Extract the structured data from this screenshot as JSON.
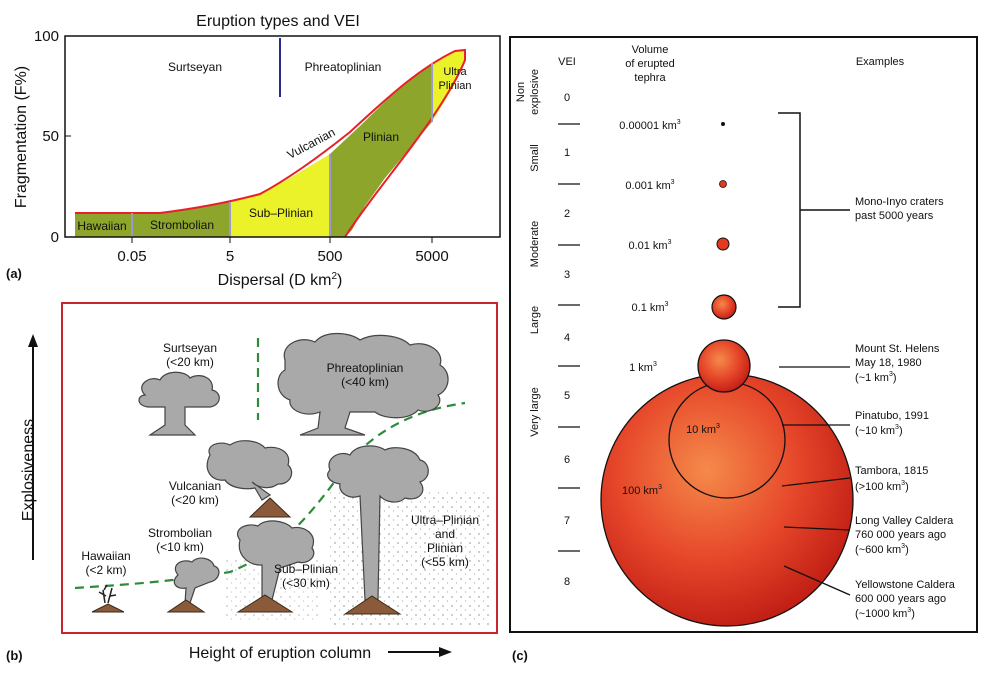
{
  "panel_a": {
    "title": "Eruption types and VEI",
    "panel_label": "(a)",
    "ylabel": "Fragmentation (F%)",
    "xlabel_main": "Dispersal (D km",
    "xlabel_sup": "2",
    "xlabel_end": ")",
    "yticks": [
      "0",
      "50",
      "100"
    ],
    "xticks": [
      "0.05",
      "5",
      "500",
      "5000"
    ],
    "regions": {
      "surtseyan": "Surtseyan",
      "phreatoplinian": "Phreatoplinian",
      "hawaiian": "Hawaiian",
      "strombolian": "Strombolian",
      "sub_plinian": "Sub–Plinian",
      "vulcanian": "Vulcanian",
      "plinian": "Plinian",
      "ultra_1": "Ultra",
      "ultra_2": "Plinian"
    },
    "colors": {
      "boundary": "#e8202a",
      "olive": "#8ca52a",
      "yellow": "#ecf22a",
      "divider": "#9a9ad0"
    }
  },
  "panel_b": {
    "panel_label": "(b)",
    "y_axis_label": "Explosiveness",
    "x_axis_label": "Height of eruption column",
    "frame_color": "#c8262e",
    "labels": {
      "surtseyan": [
        "Surtseyan",
        "(<20 km)"
      ],
      "phreatoplinian": [
        "Phreatoplinian",
        "(<40 km)"
      ],
      "vulcanian": [
        "Vulcanian",
        "(<20 km)"
      ],
      "strombolian": [
        "Strombolian",
        "(<10 km)"
      ],
      "hawaiian": [
        "Hawaiian",
        "(<2 km)"
      ],
      "sub_plinian": [
        "Sub–Plinian",
        "(<30 km)"
      ],
      "ultra_plinian": [
        "Ultra–Plinian",
        "and",
        "Plinian",
        "(<55 km)"
      ]
    }
  },
  "panel_c": {
    "panel_label": "(c)",
    "col_vei": "VEI",
    "col_volume": [
      "Volume",
      "of erupted",
      "tephra"
    ],
    "col_examples": "Examples",
    "vei_numbers": [
      "0",
      "1",
      "2",
      "3",
      "4",
      "5",
      "6",
      "7",
      "8"
    ],
    "categories": {
      "non_explosive": [
        "Non",
        "explosive"
      ],
      "small": "Small",
      "moderate": "Moderate",
      "large": "Large",
      "very_large": "Very large"
    },
    "volumes": [
      {
        "base": "0.00001 km",
        "sup": "3"
      },
      {
        "base": "0.001 km",
        "sup": "3"
      },
      {
        "base": "0.01 km",
        "sup": "3"
      },
      {
        "base": "0.1 km",
        "sup": "3"
      },
      {
        "base": "1 km",
        "sup": "3"
      },
      {
        "base": "10 km",
        "sup": "3"
      },
      {
        "base": "100 km",
        "sup": "3"
      }
    ],
    "examples": {
      "mono_inyo": [
        "Mono-Inyo craters",
        "past 5000 years"
      ],
      "st_helens": {
        "lines": [
          "Mount St. Helens",
          "May 18, 1980"
        ],
        "vol_pre": "(~1 km",
        "sup": "3",
        "vol_post": ")"
      },
      "pinatubo": {
        "lines": [
          "Pinatubo, 1991"
        ],
        "vol_pre": "(~10 km",
        "sup": "3",
        "vol_post": ")"
      },
      "tambora": {
        "lines": [
          "Tambora, 1815"
        ],
        "vol_pre": "(>100 km",
        "sup": "3",
        "vol_post": ")"
      },
      "long_valley": {
        "lines": [
          "Long Valley Caldera",
          "760 000 years ago"
        ],
        "vol_pre": "(~600 km",
        "sup": "3",
        "vol_post": ")"
      },
      "yellowstone": {
        "lines": [
          "Yellowstone Caldera",
          "600 000 years ago"
        ],
        "vol_pre": "(~1000 km",
        "sup": "3",
        "vol_post": ")"
      }
    },
    "colors": {
      "sphere_light": "#f3743a",
      "sphere_dark": "#c41e14",
      "outline": "#111111"
    }
  }
}
